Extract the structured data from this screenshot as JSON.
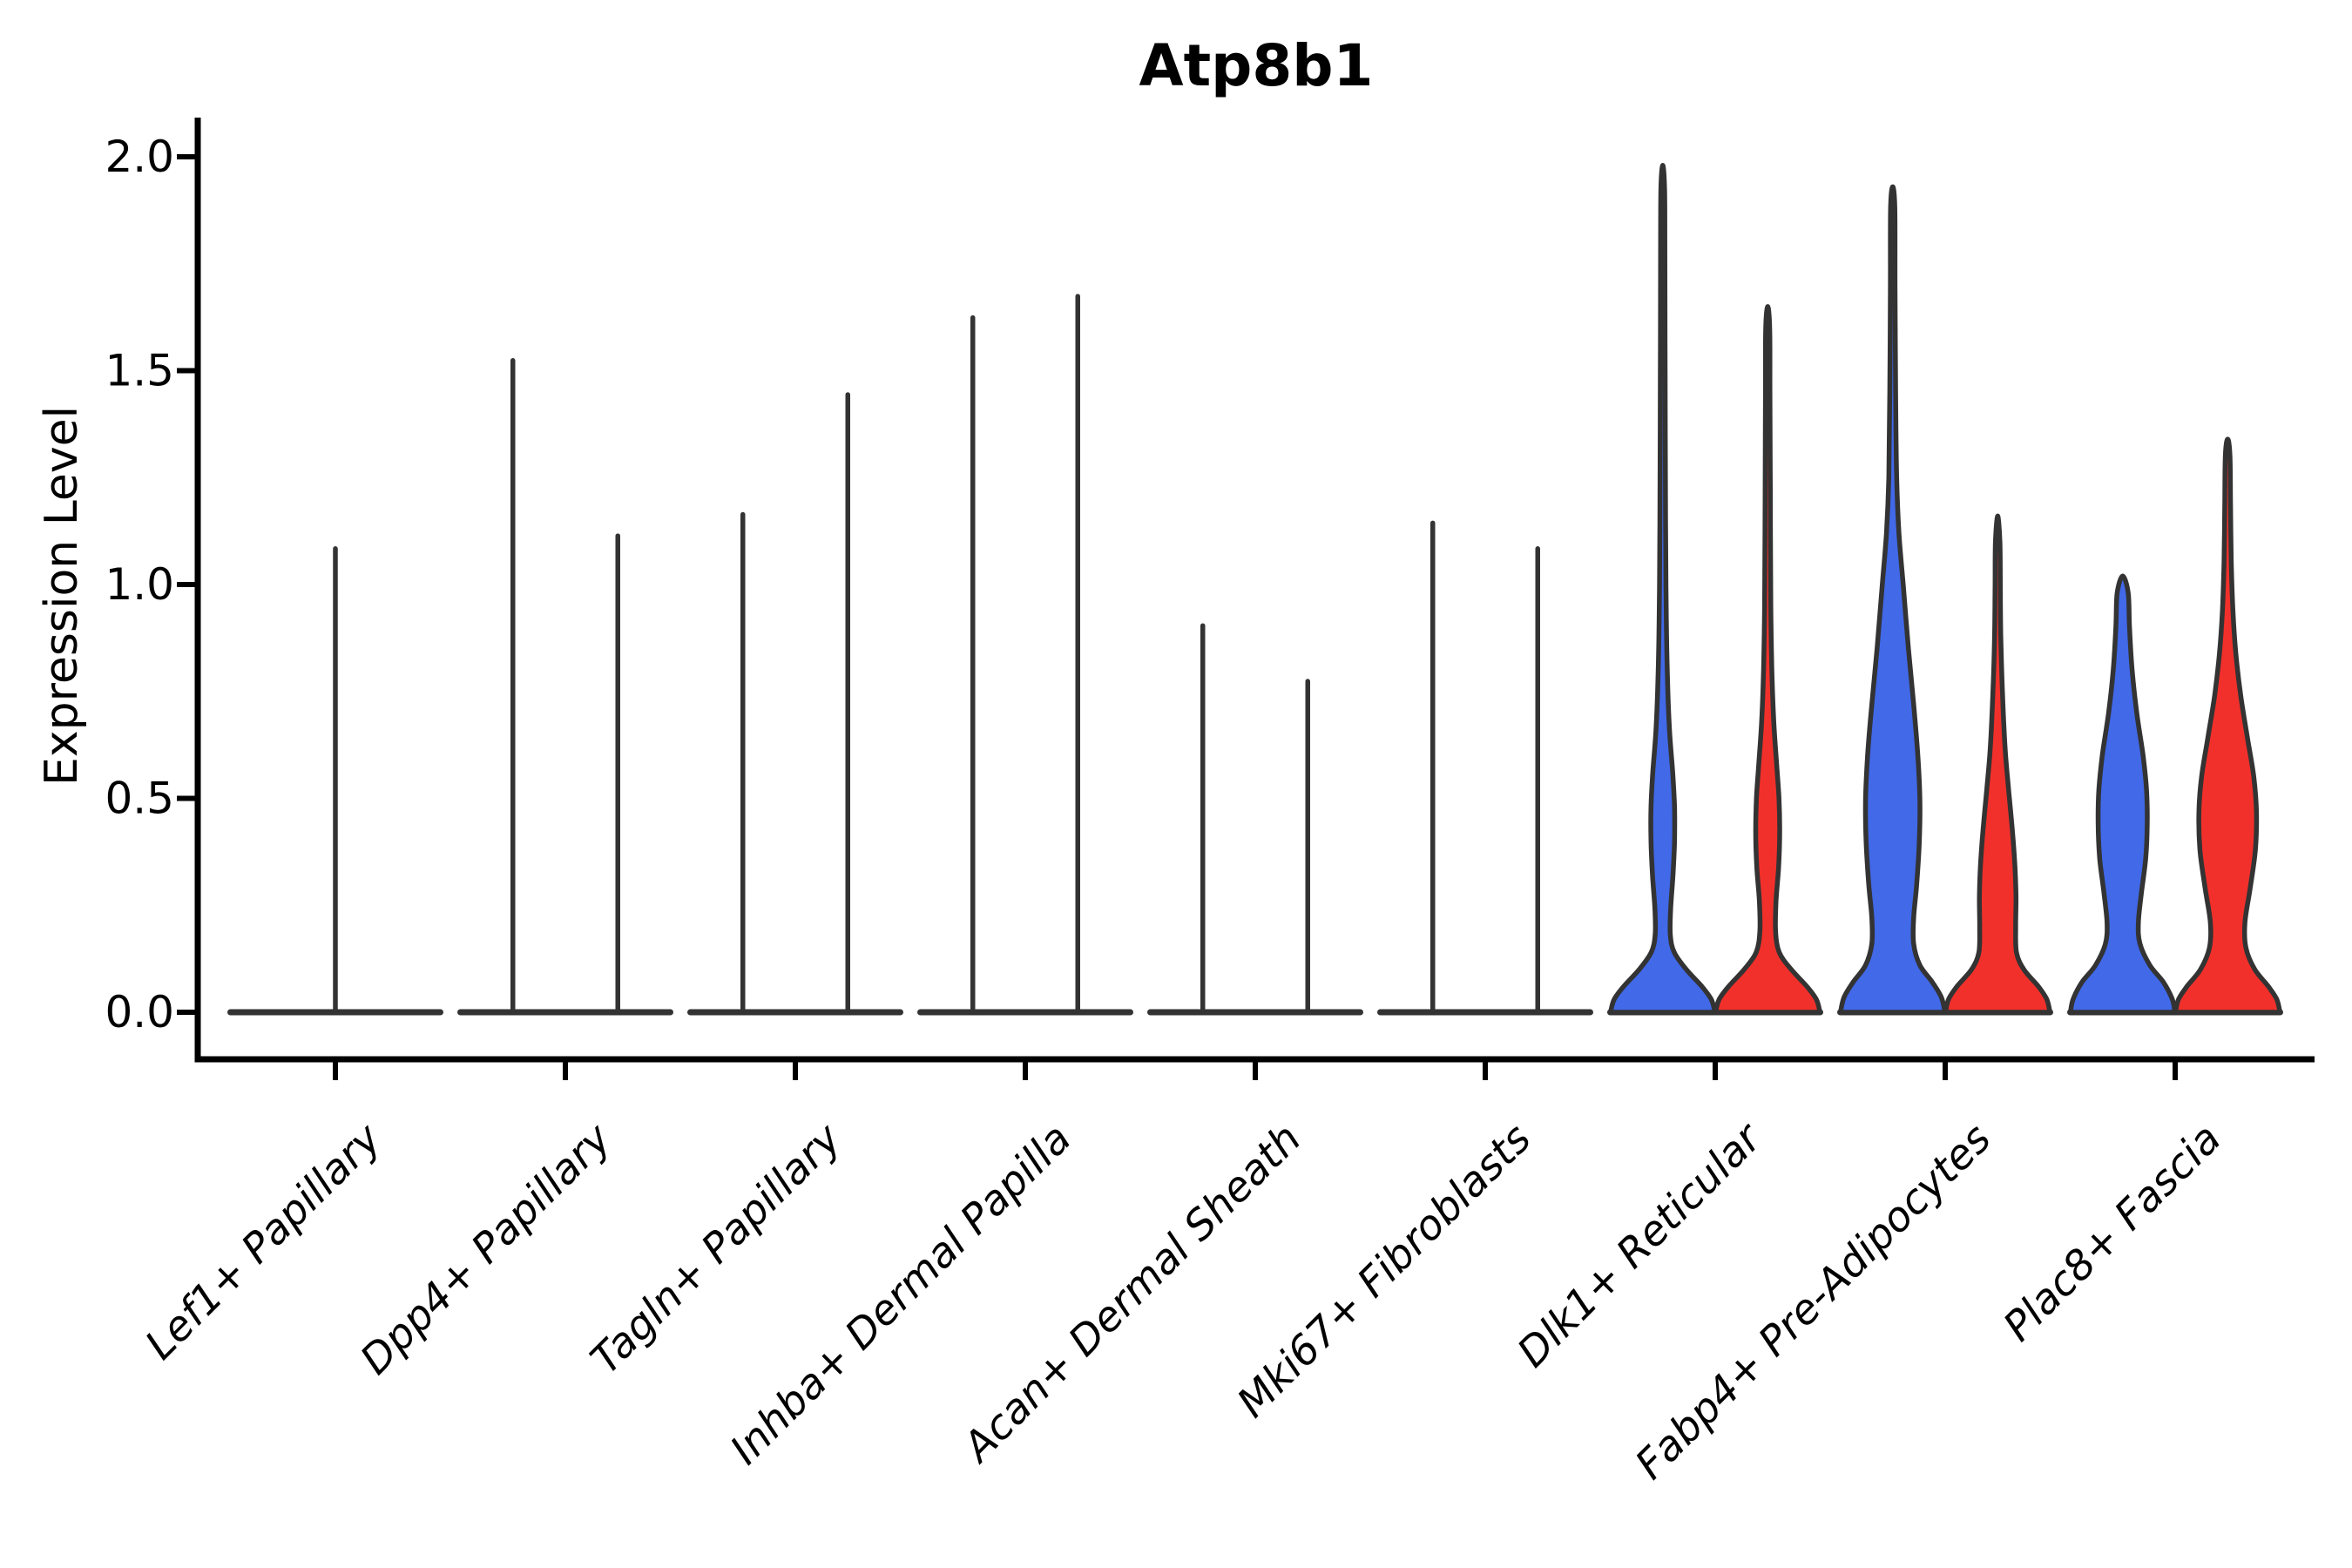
{
  "chart_data": {
    "type": "violin",
    "title": "Atp8b1",
    "ylabel": "Expression Level",
    "xlabel": "",
    "ylim": [
      -0.12,
      2.11
    ],
    "yticks": [
      {
        "value": 0.0,
        "label": "0.0"
      },
      {
        "value": 0.5,
        "label": "0.5"
      },
      {
        "value": 1.0,
        "label": "1.0"
      },
      {
        "value": 1.5,
        "label": "1.5"
      },
      {
        "value": 2.0,
        "label": "2.0"
      }
    ],
    "grid": false,
    "legend": "none",
    "colors": {
      "blue": "#4169e8",
      "red": "#f2302b",
      "outline": "#333333",
      "axis": "#000000"
    },
    "categories": [
      {
        "label": "Lef1+ Papillary",
        "violins": [
          {
            "group": "single",
            "fill": "none",
            "max": 1.09,
            "kind": "spike"
          }
        ]
      },
      {
        "label": "Dpp4+ Papillary",
        "violins": [
          {
            "group": "left",
            "fill": "none",
            "max": 1.53,
            "kind": "spike"
          },
          {
            "group": "right",
            "fill": "none",
            "max": 1.12,
            "kind": "spike"
          }
        ]
      },
      {
        "label": "Tagln+ Papillary",
        "violins": [
          {
            "group": "left",
            "fill": "none",
            "max": 1.17,
            "kind": "spike"
          },
          {
            "group": "right",
            "fill": "none",
            "max": 1.45,
            "kind": "spike"
          }
        ]
      },
      {
        "label": "Inhba+ Dermal Papilla",
        "violins": [
          {
            "group": "left",
            "fill": "none",
            "max": 1.63,
            "kind": "spike"
          },
          {
            "group": "right",
            "fill": "none",
            "max": 1.68,
            "kind": "spike"
          }
        ]
      },
      {
        "label": "Acan+ Dermal Sheath",
        "violins": [
          {
            "group": "left",
            "fill": "none",
            "max": 0.91,
            "kind": "spike"
          },
          {
            "group": "right",
            "fill": "none",
            "max": 0.78,
            "kind": "spike"
          }
        ]
      },
      {
        "label": "Mki67+ Fibroblasts",
        "violins": [
          {
            "group": "left",
            "fill": "none",
            "max": 1.15,
            "kind": "spike"
          },
          {
            "group": "right",
            "fill": "none",
            "max": 1.09,
            "kind": "spike"
          }
        ]
      },
      {
        "label": "Dlk1+ Reticular",
        "violins": [
          {
            "group": "left",
            "fill": "blue",
            "max": 1.98,
            "kind": "shape",
            "profile": [
              [
                0,
                1.0
              ],
              [
                0.03,
                0.93
              ],
              [
                0.06,
                0.75
              ],
              [
                0.1,
                0.45
              ],
              [
                0.14,
                0.22
              ],
              [
                0.18,
                0.145
              ],
              [
                0.24,
                0.15
              ],
              [
                0.32,
                0.195
              ],
              [
                0.4,
                0.225
              ],
              [
                0.48,
                0.225
              ],
              [
                0.56,
                0.19
              ],
              [
                0.66,
                0.13
              ],
              [
                0.78,
                0.09
              ],
              [
                0.95,
                0.065
              ],
              [
                1.15,
                0.055
              ],
              [
                1.5,
                0.045
              ],
              [
                1.8,
                0.04
              ],
              [
                1.93,
                0.035
              ],
              [
                1.98,
                0.0
              ]
            ]
          },
          {
            "group": "right",
            "fill": "red",
            "max": 1.65,
            "kind": "shape",
            "profile": [
              [
                0,
                1.0
              ],
              [
                0.03,
                0.93
              ],
              [
                0.06,
                0.75
              ],
              [
                0.1,
                0.45
              ],
              [
                0.14,
                0.22
              ],
              [
                0.19,
                0.15
              ],
              [
                0.26,
                0.16
              ],
              [
                0.34,
                0.21
              ],
              [
                0.42,
                0.23
              ],
              [
                0.5,
                0.215
              ],
              [
                0.58,
                0.17
              ],
              [
                0.68,
                0.115
              ],
              [
                0.8,
                0.08
              ],
              [
                0.95,
                0.06
              ],
              [
                1.2,
                0.05
              ],
              [
                1.45,
                0.042
              ],
              [
                1.6,
                0.038
              ],
              [
                1.65,
                0.0
              ]
            ]
          }
        ]
      },
      {
        "label": "Fabp4+ Pre-Adipocytes",
        "violins": [
          {
            "group": "left",
            "fill": "blue",
            "max": 1.93,
            "kind": "shape",
            "profile": [
              [
                0,
                1.0
              ],
              [
                0.035,
                0.93
              ],
              [
                0.07,
                0.76
              ],
              [
                0.11,
                0.52
              ],
              [
                0.16,
                0.4
              ],
              [
                0.22,
                0.4
              ],
              [
                0.3,
                0.46
              ],
              [
                0.4,
                0.51
              ],
              [
                0.5,
                0.52
              ],
              [
                0.6,
                0.48
              ],
              [
                0.72,
                0.4
              ],
              [
                0.85,
                0.3
              ],
              [
                1.0,
                0.2
              ],
              [
                1.12,
                0.12
              ],
              [
                1.25,
                0.075
              ],
              [
                1.45,
                0.055
              ],
              [
                1.7,
                0.045
              ],
              [
                1.88,
                0.04
              ],
              [
                1.93,
                0.0
              ]
            ]
          },
          {
            "group": "right",
            "fill": "red",
            "max": 1.16,
            "kind": "shape",
            "profile": [
              [
                0,
                1.0
              ],
              [
                0.03,
                0.94
              ],
              [
                0.06,
                0.78
              ],
              [
                0.1,
                0.5
              ],
              [
                0.14,
                0.36
              ],
              [
                0.2,
                0.345
              ],
              [
                0.27,
                0.35
              ],
              [
                0.34,
                0.33
              ],
              [
                0.42,
                0.285
              ],
              [
                0.52,
                0.21
              ],
              [
                0.62,
                0.14
              ],
              [
                0.75,
                0.09
              ],
              [
                0.88,
                0.06
              ],
              [
                1.0,
                0.05
              ],
              [
                1.1,
                0.042
              ],
              [
                1.16,
                0.0
              ]
            ]
          }
        ]
      },
      {
        "label": "Plac8+ Fascia",
        "violins": [
          {
            "group": "left",
            "fill": "blue",
            "max": 1.02,
            "kind": "shape",
            "profile": [
              [
                0,
                1.0
              ],
              [
                0.03,
                0.95
              ],
              [
                0.07,
                0.78
              ],
              [
                0.11,
                0.52
              ],
              [
                0.16,
                0.33
              ],
              [
                0.21,
                0.3
              ],
              [
                0.28,
                0.36
              ],
              [
                0.36,
                0.44
              ],
              [
                0.44,
                0.47
              ],
              [
                0.52,
                0.455
              ],
              [
                0.6,
                0.39
              ],
              [
                0.7,
                0.27
              ],
              [
                0.8,
                0.18
              ],
              [
                0.9,
                0.13
              ],
              [
                0.98,
                0.105
              ],
              [
                1.02,
                0.0
              ]
            ]
          },
          {
            "group": "right",
            "fill": "red",
            "max": 1.34,
            "kind": "shape",
            "profile": [
              [
                0,
                1.0
              ],
              [
                0.03,
                0.94
              ],
              [
                0.06,
                0.78
              ],
              [
                0.1,
                0.52
              ],
              [
                0.15,
                0.35
              ],
              [
                0.21,
                0.33
              ],
              [
                0.29,
                0.43
              ],
              [
                0.38,
                0.53
              ],
              [
                0.47,
                0.55
              ],
              [
                0.55,
                0.5
              ],
              [
                0.64,
                0.38
              ],
              [
                0.74,
                0.25
              ],
              [
                0.84,
                0.155
              ],
              [
                0.94,
                0.1
              ],
              [
                1.05,
                0.07
              ],
              [
                1.18,
                0.055
              ],
              [
                1.3,
                0.045
              ],
              [
                1.34,
                0.0
              ]
            ]
          }
        ]
      }
    ]
  }
}
